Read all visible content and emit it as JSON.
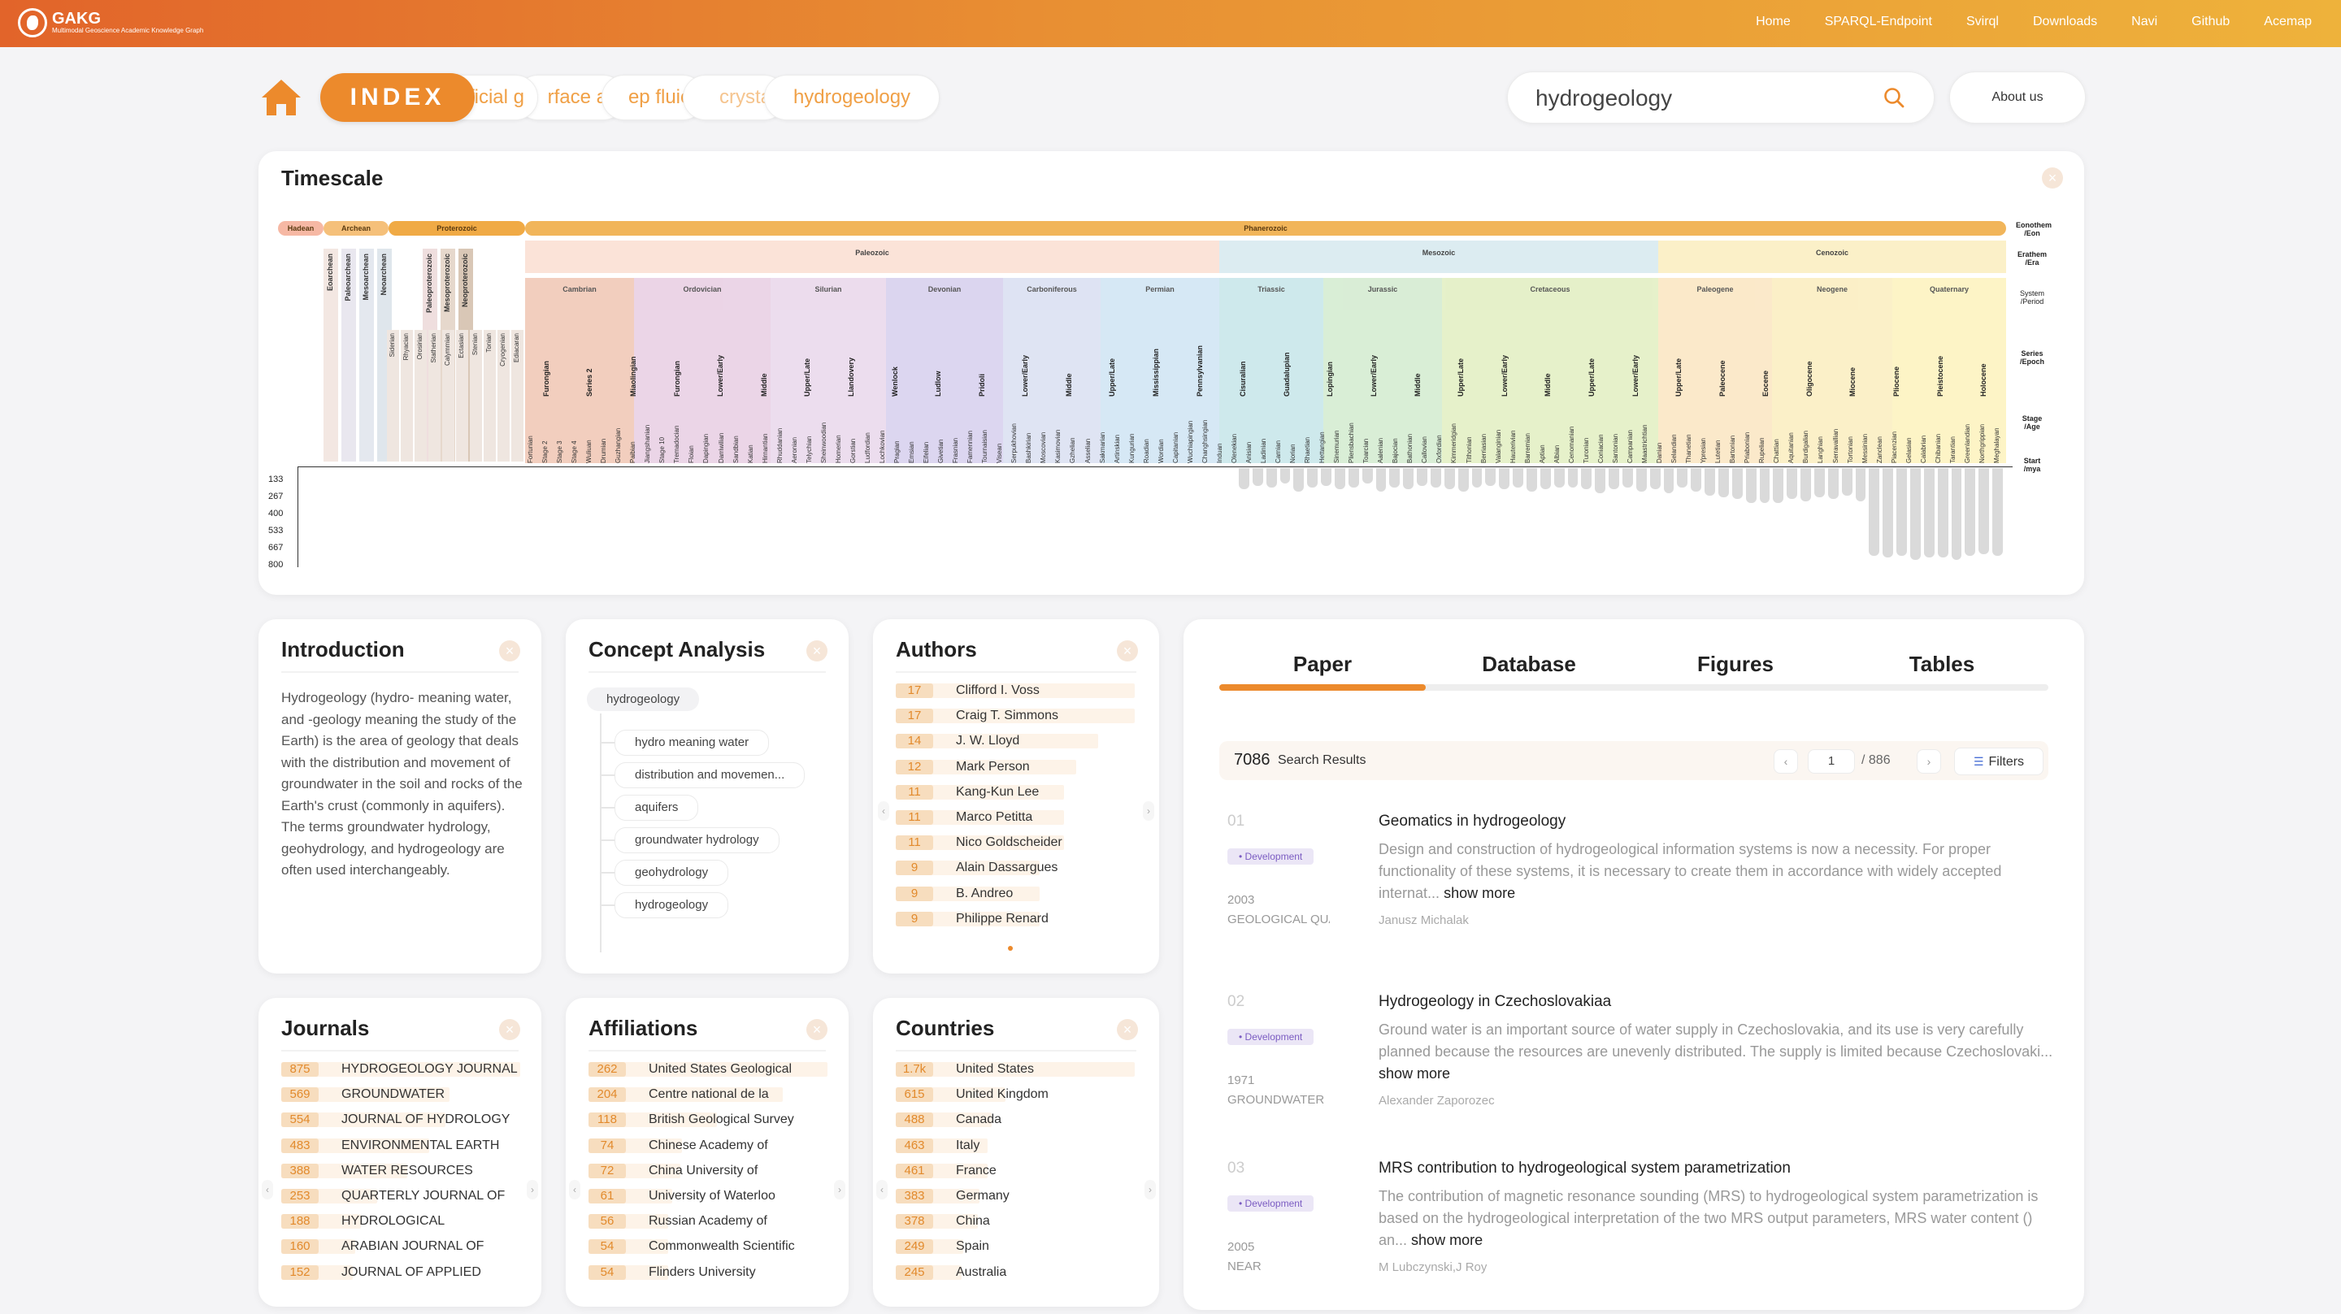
{
  "brand": {
    "title": "GAKG",
    "subtitle": "Multimodal Geoscience Academic Knowledge Graph"
  },
  "nav": [
    "Home",
    "SPARQL-Endpoint",
    "Svirql",
    "Downloads",
    "Navi",
    "Github",
    "Acemap"
  ],
  "index_label": "INDEX",
  "history": [
    "fficial g",
    "rface a",
    "ep fluic",
    "crysta",
    "hydrogeology"
  ],
  "search": {
    "value": "hydrogeology",
    "placeholder": ""
  },
  "about_label": "About us",
  "timescale": {
    "title": "Timescale",
    "eons": [
      "Hadean",
      "Archean",
      "Proterozoic",
      "Phanerozoic"
    ],
    "eras": [
      "Paleozoic",
      "Mesozoic",
      "Cenozoic"
    ],
    "periods": [
      "Cambrian",
      "Ordovician",
      "Silurian",
      "Devonian",
      "Carboniferous",
      "Permian",
      "Triassic",
      "Jurassic",
      "Cretaceous",
      "Paleogene",
      "Neogene",
      "Quaternary"
    ],
    "precambrian": [
      "Eoarchean",
      "Paleoarchean",
      "Mesoarchean",
      "Neoarchean",
      "Paleoproterozoic",
      "Mesoproterozoic",
      "Neoproterozoic"
    ],
    "pre_stages": [
      "Siderian",
      "Rhyacian",
      "Orosirian",
      "Statherian",
      "Calymmian",
      "Ectasian",
      "Stenian",
      "Tonian",
      "Cryogenian",
      "Ediacaran"
    ],
    "series": [
      "Furongian",
      "Series 2",
      "Miaolingian",
      "Furongian",
      "Lower/Early",
      "Middle",
      "Upper/Late",
      "Llandovery",
      "Wenlock",
      "Ludlow",
      "Pridoli",
      "Lower/Early",
      "Middle",
      "Upper/Late",
      "Mississippian",
      "Pennsylvanian",
      "Cisuralian",
      "Guadalupian",
      "Lopingian",
      "Lower/Early",
      "Middle",
      "Upper/Late",
      "Lower/Early",
      "Middle",
      "Upper/Late",
      "Lower/Early",
      "Upper/Late",
      "Paleocene",
      "Eocene",
      "Oligocene",
      "Miocene",
      "Pliocene",
      "Pleistocene",
      "Holocene"
    ],
    "stages": [
      "Fortunian",
      "Stage 2",
      "Stage 3",
      "Stage 4",
      "Wuliuan",
      "Drumian",
      "Guzhangian",
      "Paibian",
      "Jiangshanian",
      "Stage 10",
      "Tremadocian",
      "Floian",
      "Dapingian",
      "Darriwilian",
      "Sandbian",
      "Katian",
      "Hirnantian",
      "Rhuddanian",
      "Aeronian",
      "Telychian",
      "Sheinwoodian",
      "Homerian",
      "Gorstian",
      "Ludfordian",
      "Lochkovian",
      "Pragian",
      "Emsian",
      "Eifelian",
      "Givetian",
      "Frasnian",
      "Famennian",
      "Tournaisian",
      "Visean",
      "Serpukhovian",
      "Bashkirian",
      "Moscovian",
      "Kasimovian",
      "Gzhelian",
      "Asselian",
      "Sakmarian",
      "Artinskian",
      "Kungurian",
      "Roadian",
      "Wordian",
      "Capitanian",
      "Wuchiapingian",
      "Changhsingian",
      "Induan",
      "Olenekian",
      "Anisian",
      "Ladinian",
      "Carnian",
      "Norian",
      "Rhaetian",
      "Hettangian",
      "Sinemurian",
      "Pliensbachian",
      "Toarcian",
      "Aalenian",
      "Bajocian",
      "Bathonian",
      "Callovian",
      "Oxfordian",
      "Kimmeridgian",
      "Tithonian",
      "Berriasian",
      "Valanginian",
      "Hauterivian",
      "Barremian",
      "Aptian",
      "Albian",
      "Cenomanian",
      "Turonian",
      "Coniacian",
      "Santonian",
      "Campanian",
      "Maastrichtian",
      "Danian",
      "Selandian",
      "Thanetian",
      "Ypresian",
      "Lutetian",
      "Bartonian",
      "Priabonian",
      "Rupelian",
      "Chattian",
      "Aquitanian",
      "Burdigalian",
      "Langhian",
      "Serravallian",
      "Tortonian",
      "Messinian",
      "Zanclean",
      "Piacenzian",
      "Gelasian",
      "Calabrian",
      "Chibanian",
      "Tarantian",
      "Greenlandian",
      "Northgrippian",
      "Meghalayan"
    ],
    "side_labels": [
      "Eonothem /Eon",
      "Erathem /Era",
      "System /Period",
      "Series /Epoch",
      "Stage /Age",
      "Start /mya"
    ],
    "y_ticks": [
      "133",
      "267",
      "400",
      "533",
      "667",
      "800"
    ],
    "bar_levels": [
      0.22,
      0.18,
      0.2,
      0.16,
      0.24,
      0.2,
      0.18,
      0.22,
      0.2,
      0.16,
      0.24,
      0.2,
      0.22,
      0.18,
      0.2,
      0.22,
      0.24,
      0.2,
      0.18,
      0.22,
      0.2,
      0.24,
      0.22,
      0.2,
      0.2,
      0.22,
      0.26,
      0.22,
      0.2,
      0.24,
      0.22,
      0.26,
      0.2,
      0.24,
      0.28,
      0.3,
      0.32,
      0.36,
      0.36,
      0.36,
      0.32,
      0.34,
      0.3,
      0.32,
      0.28,
      0.34,
      0.9,
      0.92,
      0.9,
      0.94,
      0.92,
      0.92,
      0.94,
      0.9,
      0.88,
      0.9
    ]
  },
  "introduction": {
    "title": "Introduction",
    "text": "Hydrogeology (hydro- meaning water, and -geology meaning the study of the Earth) is the area of geology that deals with the distribution and movement of groundwater in the soil and rocks of the Earth's crust (commonly in aquifers). The terms groundwater hydrology, geohydrology, and hydrogeology are often used interchangeably."
  },
  "concept": {
    "title": "Concept Analysis",
    "root": "hydrogeology",
    "items": [
      "hydro meaning water",
      "distribution and movemen...",
      "aquifers",
      "groundwater hydrology",
      "geohydrology",
      "hydrogeology"
    ]
  },
  "authors": {
    "title": "Authors",
    "items": [
      {
        "count": "17",
        "name": "Clifford I. Voss",
        "level": 1.0
      },
      {
        "count": "17",
        "name": "Craig T. Simmons",
        "level": 1.0
      },
      {
        "count": "14",
        "name": "J. W. Lloyd",
        "level": 0.82
      },
      {
        "count": "12",
        "name": "Mark Person",
        "level": 0.71
      },
      {
        "count": "11",
        "name": "Kang-Kun Lee",
        "level": 0.65
      },
      {
        "count": "11",
        "name": "Marco Petitta",
        "level": 0.65
      },
      {
        "count": "11",
        "name": "Nico Goldscheider",
        "level": 0.65
      },
      {
        "count": "9",
        "name": "Alain Dassargues",
        "level": 0.53
      },
      {
        "count": "9",
        "name": "B. Andreo",
        "level": 0.53
      },
      {
        "count": "9",
        "name": "Philippe Renard",
        "level": 0.53
      }
    ]
  },
  "journals": {
    "title": "Journals",
    "items": [
      {
        "count": "875",
        "name": "HYDROGEOLOGY JOURNAL",
        "level": 1.0
      },
      {
        "count": "569",
        "name": "GROUNDWATER",
        "level": 0.65
      },
      {
        "count": "554",
        "name": "JOURNAL OF HYDROLOGY",
        "level": 0.63
      },
      {
        "count": "483",
        "name": "ENVIRONMENTAL EARTH",
        "level": 0.55
      },
      {
        "count": "388",
        "name": "WATER RESOURCES",
        "level": 0.44
      },
      {
        "count": "253",
        "name": "QUARTERLY JOURNAL OF",
        "level": 0.29
      },
      {
        "count": "188",
        "name": "HYDROLOGICAL",
        "level": 0.21
      },
      {
        "count": "160",
        "name": "ARABIAN JOURNAL OF",
        "level": 0.18
      },
      {
        "count": "152",
        "name": "JOURNAL OF APPLIED",
        "level": 0.17
      }
    ]
  },
  "affiliations": {
    "title": "Affiliations",
    "items": [
      {
        "count": "262",
        "name": "United States Geological",
        "level": 1.0
      },
      {
        "count": "204",
        "name": "Centre national de la",
        "level": 0.78
      },
      {
        "count": "118",
        "name": "British Geological Survey",
        "level": 0.45
      },
      {
        "count": "74",
        "name": "Chinese Academy of",
        "level": 0.28
      },
      {
        "count": "72",
        "name": "China University of",
        "level": 0.27
      },
      {
        "count": "61",
        "name": "University of Waterloo",
        "level": 0.23
      },
      {
        "count": "56",
        "name": "Russian Academy of",
        "level": 0.21
      },
      {
        "count": "54",
        "name": "Commonwealth Scientific",
        "level": 0.21
      },
      {
        "count": "54",
        "name": "Flinders University",
        "level": 0.21
      }
    ]
  },
  "countries": {
    "title": "Countries",
    "items": [
      {
        "count": "1.7k",
        "name": "United States",
        "level": 1.0
      },
      {
        "count": "615",
        "name": "United Kingdom",
        "level": 0.36
      },
      {
        "count": "488",
        "name": "Canada",
        "level": 0.29
      },
      {
        "count": "463",
        "name": "Italy",
        "level": 0.27
      },
      {
        "count": "461",
        "name": "France",
        "level": 0.27
      },
      {
        "count": "383",
        "name": "Germany",
        "level": 0.23
      },
      {
        "count": "378",
        "name": "China",
        "level": 0.22
      },
      {
        "count": "249",
        "name": "Spain",
        "level": 0.15
      },
      {
        "count": "245",
        "name": "Australia",
        "level": 0.14
      }
    ]
  },
  "results": {
    "tabs": [
      "Paper",
      "Database",
      "Figures",
      "Tables"
    ],
    "count": "7086",
    "count_label": "Search Results",
    "page": "1",
    "total": "/ 886",
    "filters_label": "Filters",
    "show_more": "show more",
    "papers": [
      {
        "num": "01",
        "tag": "Development",
        "year": "2003",
        "venue": "GEOLOGICAL QUARTERLY",
        "title": "Geomatics in hydrogeology",
        "desc": "Design and construction of hydrogeological information systems is now a necessity. For proper functionality of these systems, it is necessary to create them in accordance with widely accepted internat...",
        "author": "Janusz Michalak"
      },
      {
        "num": "02",
        "tag": "Development",
        "year": "1971",
        "venue": "GROUNDWATER",
        "title": "Hydrogeology in Czechoslovakiaa",
        "desc": "Ground water is an important source of water supply in Czechoslovakia, and its use is very carefully planned because the resources are unevenly distributed. The supply is limited because Czechoslovaki...",
        "author": "Alexander Zaporozec"
      },
      {
        "num": "03",
        "tag": "Development",
        "year": "2005",
        "venue": "NEAR",
        "title": "MRS contribution to hydrogeological system parametrization",
        "desc": "The contribution of magnetic resonance sounding (MRS) to hydrogeological system parametrization is based on the hydrogeological interpretation of the two MRS output parameters, MRS water content () an...",
        "author": "M Lubczynski,J Roy"
      }
    ]
  }
}
